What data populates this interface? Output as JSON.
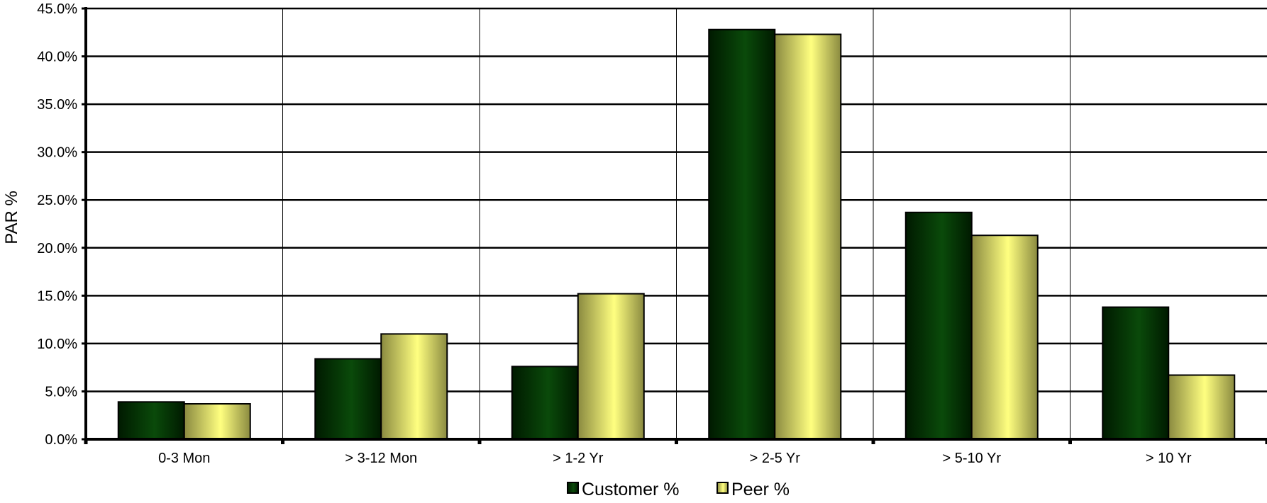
{
  "chart_data": {
    "type": "bar",
    "title": "",
    "xlabel": "",
    "ylabel": "PAR %",
    "categories": [
      "0-3 Mon",
      "> 3-12 Mon",
      "> 1-2 Yr",
      "> 2-5 Yr",
      "> 5-10 Yr",
      "> 10 Yr"
    ],
    "series": [
      {
        "name": "Customer %",
        "values": [
          3.9,
          8.4,
          7.6,
          42.8,
          23.7,
          13.8
        ]
      },
      {
        "name": "Peer %",
        "values": [
          3.7,
          11.0,
          15.2,
          42.3,
          21.3,
          6.7
        ]
      }
    ],
    "ylim": [
      0,
      45
    ],
    "yticks": [
      "0.0%",
      "5.0%",
      "10.0%",
      "15.0%",
      "20.0%",
      "25.0%",
      "30.0%",
      "35.0%",
      "40.0%",
      "45.0%"
    ],
    "grid": true,
    "legend": "bottom",
    "colors": {
      "customer_dark": "#001a00",
      "customer_light": "#0a4a0a",
      "peer_dark": "#8a8a40",
      "peer_light": "#ffff80"
    }
  }
}
